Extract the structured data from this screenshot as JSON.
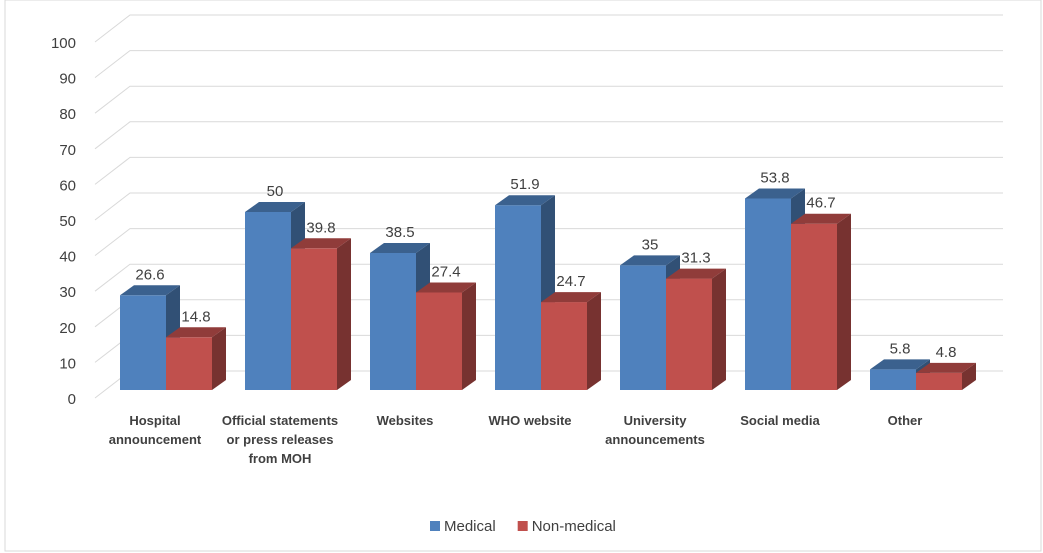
{
  "chart_data": {
    "type": "bar3d",
    "categories": [
      "Hospital announcement",
      "Official statements or press releases from MOH",
      "Websites",
      "WHO website",
      "University announcements",
      "Social media",
      "Other"
    ],
    "series": [
      {
        "name": "Medical",
        "color": "#4f81bd",
        "values": [
          26.6,
          50,
          38.5,
          51.9,
          35,
          53.8,
          5.8
        ]
      },
      {
        "name": "Non-medical",
        "color": "#c0504d",
        "values": [
          14.8,
          39.8,
          27.4,
          24.7,
          31.3,
          46.7,
          4.8
        ]
      }
    ],
    "ylim": [
      0,
      100
    ],
    "yticks": [
      0,
      10,
      20,
      30,
      40,
      50,
      60,
      70,
      80,
      90,
      100
    ],
    "grid": true,
    "legend": "bottom"
  }
}
